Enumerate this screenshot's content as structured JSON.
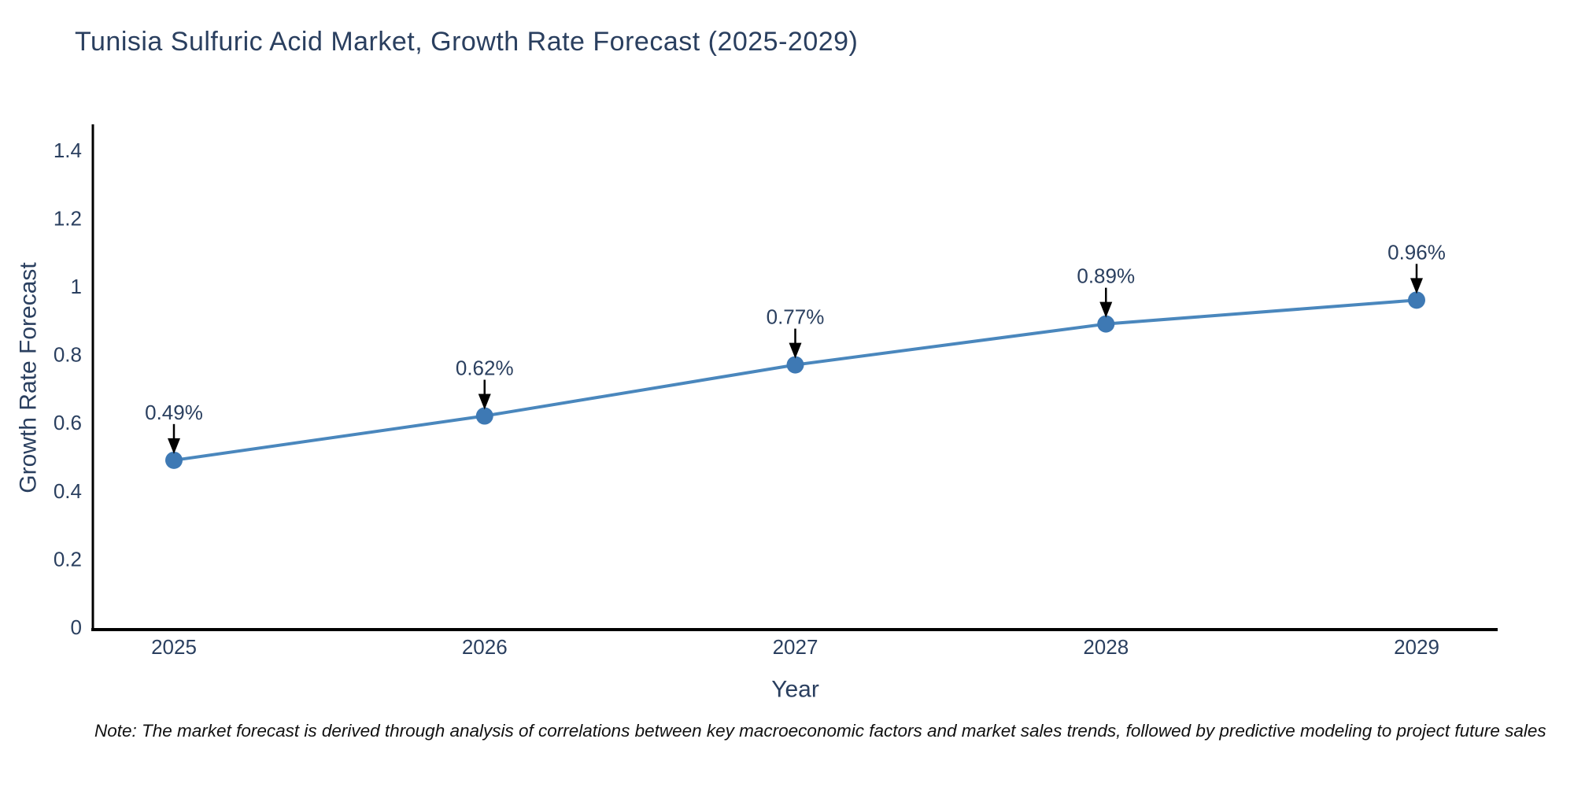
{
  "title": "Tunisia Sulfuric Acid Market, Growth Rate Forecast (2025-2029)",
  "note": "Note: The market forecast is derived through analysis of correlations between key macroeconomic factors and market sales trends, followed by predictive modeling to project future sales",
  "colors": {
    "title_text": "#2a3f5f",
    "tick_text": "#2a3f5f",
    "axis_title_text": "#2a3f5f",
    "annotation_text": "#2a3f5f",
    "note_text": "#111111",
    "axis_line": "#000000",
    "series_line": "#4a87bd",
    "marker_fill": "#3e79b4",
    "arrow": "#000000",
    "background": "#ffffff"
  },
  "chart_data": {
    "type": "line",
    "title": "Tunisia Sulfuric Acid Market, Growth Rate Forecast (2025-2029)",
    "categories": [
      "2025",
      "2026",
      "2027",
      "2028",
      "2029"
    ],
    "series": [
      {
        "name": "Growth Rate Forecast",
        "values": [
          0.49,
          0.62,
          0.77,
          0.89,
          0.96
        ]
      }
    ],
    "point_labels": [
      "0.49%",
      "0.62%",
      "0.77%",
      "0.89%",
      "0.96%"
    ],
    "xlabel": "Year",
    "ylabel": "Growth Rate Forecast",
    "ylim": [
      0,
      1.4
    ],
    "yticks": [
      0,
      0.2,
      0.4,
      0.6,
      0.8,
      1,
      1.2,
      1.4
    ],
    "grid": false,
    "legend": "none",
    "markers": true,
    "annotations": "each point labeled with percent value above a black down-arrow"
  }
}
